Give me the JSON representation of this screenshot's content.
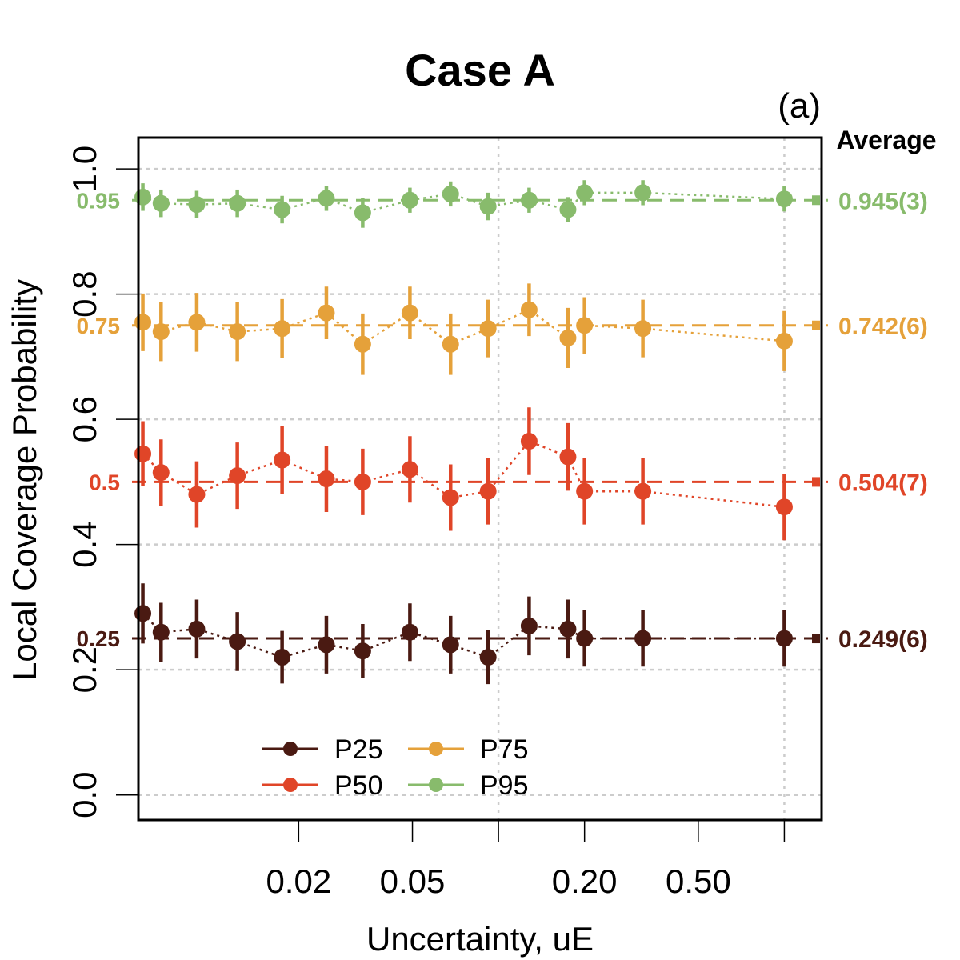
{
  "chart_data": {
    "type": "scatter",
    "title": "Case A",
    "panel_label": "(a)",
    "xlabel": "Uncertainty, uE",
    "ylabel": "Local Coverage Probability",
    "x_scale": "log",
    "xlim": [
      0.0055,
      1.35
    ],
    "ylim": [
      -0.04,
      1.05
    ],
    "x_ticks": [
      {
        "value": 0.02,
        "label": "0.02"
      },
      {
        "value": 0.05,
        "label": "0.05"
      },
      {
        "value": 0.1,
        "label": ""
      },
      {
        "value": 0.2,
        "label": "0.20"
      },
      {
        "value": 0.5,
        "label": "0.50"
      },
      {
        "value": 1.0,
        "label": ""
      }
    ],
    "y_ticks": [
      {
        "value": 0.0,
        "label": "0.0"
      },
      {
        "value": 0.2,
        "label": "0.2"
      },
      {
        "value": 0.4,
        "label": "0.4"
      },
      {
        "value": 0.6,
        "label": "0.6"
      },
      {
        "value": 0.8,
        "label": "0.8"
      },
      {
        "value": 1.0,
        "label": "1.0"
      }
    ],
    "grid": true,
    "average_header": "Average",
    "legend_position": "bottom-left",
    "x": [
      0.0057,
      0.0066,
      0.0088,
      0.0122,
      0.0175,
      0.025,
      0.0335,
      0.049,
      0.068,
      0.092,
      0.128,
      0.175,
      0.2,
      0.32,
      1.0
    ],
    "series": [
      {
        "name": "P25",
        "color": "#4a1a12",
        "reference": 0.25,
        "reference_label": "0.25",
        "average_label": "0.249(6)",
        "values": [
          0.29,
          0.26,
          0.265,
          0.245,
          0.22,
          0.24,
          0.23,
          0.26,
          0.24,
          0.22,
          0.27,
          0.265,
          0.25,
          0.25,
          0.25
        ],
        "errors": [
          0.048,
          0.047,
          0.047,
          0.047,
          0.042,
          0.046,
          0.043,
          0.046,
          0.046,
          0.043,
          0.047,
          0.047,
          0.045,
          0.045,
          0.045
        ]
      },
      {
        "name": "P50",
        "color": "#e04528",
        "reference": 0.5,
        "reference_label": "0.5",
        "average_label": "0.504(7)",
        "values": [
          0.545,
          0.515,
          0.48,
          0.51,
          0.535,
          0.505,
          0.5,
          0.52,
          0.475,
          0.485,
          0.565,
          0.54,
          0.485,
          0.485,
          0.46
        ],
        "errors": [
          0.052,
          0.053,
          0.053,
          0.053,
          0.054,
          0.053,
          0.053,
          0.053,
          0.053,
          0.053,
          0.054,
          0.054,
          0.053,
          0.053,
          0.053
        ]
      },
      {
        "name": "P75",
        "color": "#e5a13a",
        "reference": 0.75,
        "reference_label": "0.75",
        "average_label": "0.742(6)",
        "values": [
          0.755,
          0.74,
          0.755,
          0.74,
          0.745,
          0.77,
          0.72,
          0.77,
          0.72,
          0.745,
          0.775,
          0.73,
          0.75,
          0.745,
          0.725
        ],
        "errors": [
          0.046,
          0.047,
          0.047,
          0.047,
          0.047,
          0.042,
          0.049,
          0.042,
          0.049,
          0.046,
          0.042,
          0.048,
          0.045,
          0.046,
          0.048
        ]
      },
      {
        "name": "P95",
        "color": "#88bb6c",
        "reference": 0.95,
        "reference_label": "0.95",
        "average_label": "0.945(3)",
        "values": [
          0.955,
          0.945,
          0.943,
          0.945,
          0.935,
          0.953,
          0.93,
          0.95,
          0.96,
          0.94,
          0.95,
          0.935,
          0.962,
          0.962,
          0.952
        ],
        "errors": [
          0.022,
          0.022,
          0.022,
          0.022,
          0.022,
          0.02,
          0.024,
          0.02,
          0.02,
          0.022,
          0.02,
          0.02,
          0.02,
          0.02,
          0.02
        ]
      }
    ]
  }
}
